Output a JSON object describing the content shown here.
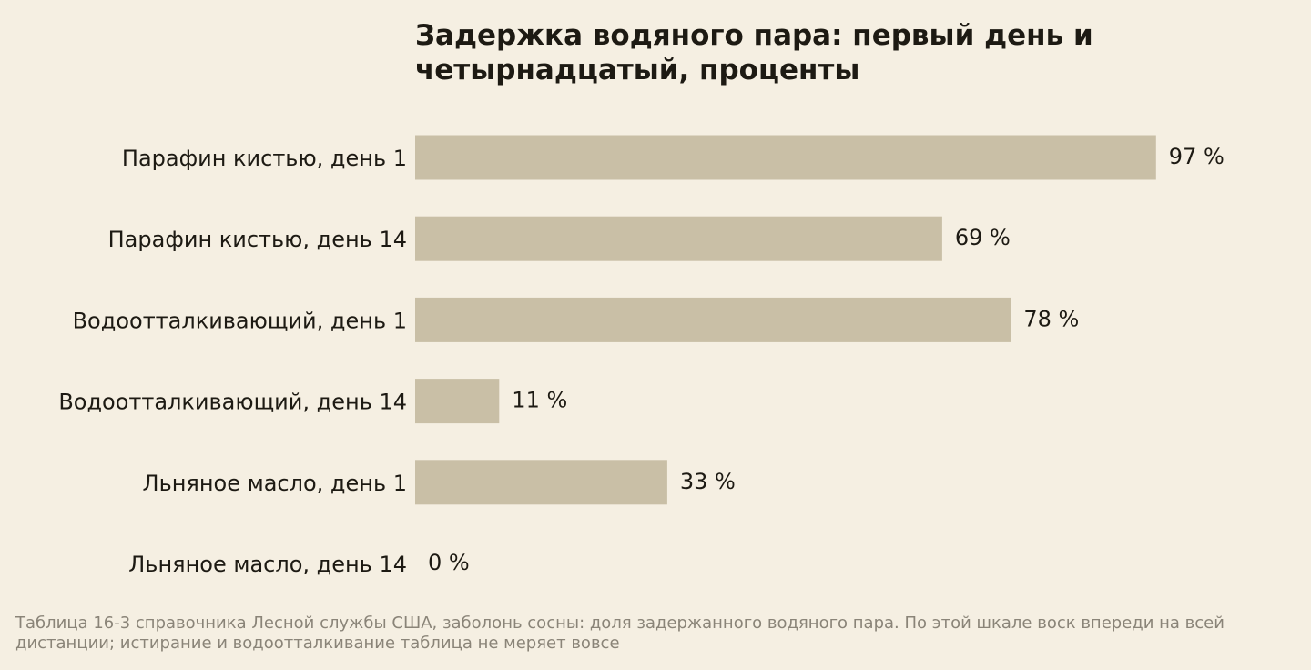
{
  "chart_data": {
    "type": "bar",
    "orientation": "horizontal",
    "title": "Задержка водяного пара: первый день и четырнадцатый, проценты",
    "categories": [
      "Парафин кистью, день 1",
      "Парафин кистью, день 14",
      "Водоотталкивающий, день 1",
      "Водоотталкивающий, день 14",
      "Льняное масло, день 1",
      "Льняное масло, день 14"
    ],
    "values": [
      97,
      69,
      78,
      11,
      33,
      0
    ],
    "value_labels": [
      "97 %",
      "69 %",
      "78 %",
      "11 %",
      "33 %",
      "0 %"
    ],
    "xlim": [
      0,
      100
    ],
    "grid": false,
    "legend": "none",
    "bar_color": "#c9bfa6",
    "note": "Таблица 16-3 справочника Лесной службы США, заболонь сосны: доля задержанного водяного пара. По этой шкале воск впереди на всей дистанции; истирание и водоотталкивание таблица не меряет вовсе"
  },
  "colors": {
    "background": "#f5efe2",
    "text": "#1d1a13",
    "note": "#8a8478",
    "bar": "#c9bfa6"
  }
}
